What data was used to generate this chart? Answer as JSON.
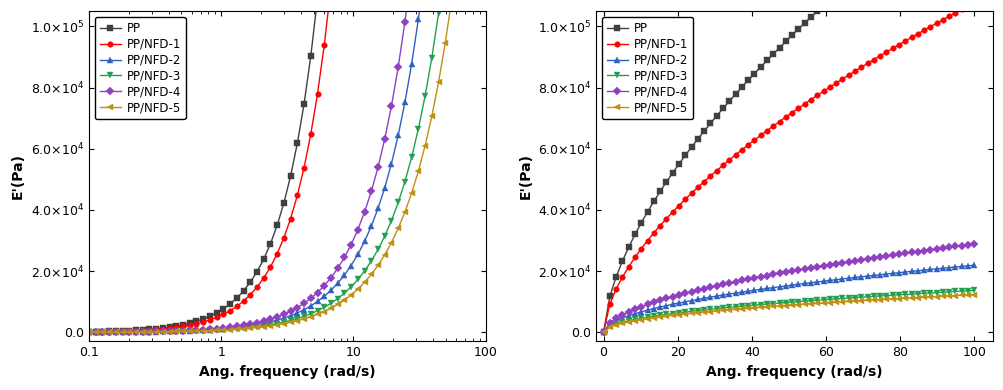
{
  "series": [
    {
      "label": "PP",
      "color": "#404040",
      "marker": "s",
      "mfc": "#404040",
      "mec": "#404040"
    },
    {
      "label": "PP/NFD-1",
      "color": "#ff0000",
      "marker": "o",
      "mfc": "#ff0000",
      "mec": "#ff0000"
    },
    {
      "label": "PP/NFD-2",
      "color": "#3060c0",
      "marker": "^",
      "mfc": "#3060c0",
      "mec": "#3060c0"
    },
    {
      "label": "PP/NFD-3",
      "color": "#20a050",
      "marker": "v",
      "mfc": "#20a050",
      "mec": "#20a050"
    },
    {
      "label": "PP/NFD-4",
      "color": "#9040c0",
      "marker": "D",
      "mfc": "#9040c0",
      "mec": "#9040c0"
    },
    {
      "label": "PP/NFD-5",
      "color": "#c09010",
      "marker": "<",
      "mfc": "#c09010",
      "mec": "#c09010"
    }
  ],
  "log_params": [
    {
      "a": 7200,
      "b": 1.62
    },
    {
      "a": 5500,
      "b": 1.58
    },
    {
      "a": 1100,
      "b": 1.32
    },
    {
      "a": 820,
      "b": 1.28
    },
    {
      "a": 1350,
      "b": 1.35
    },
    {
      "a": 720,
      "b": 1.25
    }
  ],
  "lin_params": [
    {
      "a": 8500,
      "b": 0.62
    },
    {
      "a": 6800,
      "b": 0.6
    },
    {
      "a": 2000,
      "b": 0.52
    },
    {
      "a": 1500,
      "b": 0.48
    },
    {
      "a": 2400,
      "b": 0.54
    },
    {
      "a": 1350,
      "b": 0.48
    }
  ],
  "ylabel": "E'(Pa)",
  "xlabel": "Ang. frequency (rad/s)",
  "ylim_left": [
    -3000,
    105000
  ],
  "ylim_right": [
    -3000,
    105000
  ],
  "yticks": [
    0,
    20000,
    40000,
    60000,
    80000,
    100000
  ],
  "background_color": "#ffffff",
  "markersize": 4,
  "linewidth": 1.0,
  "n_points_log": 60,
  "n_points_lin": 60
}
